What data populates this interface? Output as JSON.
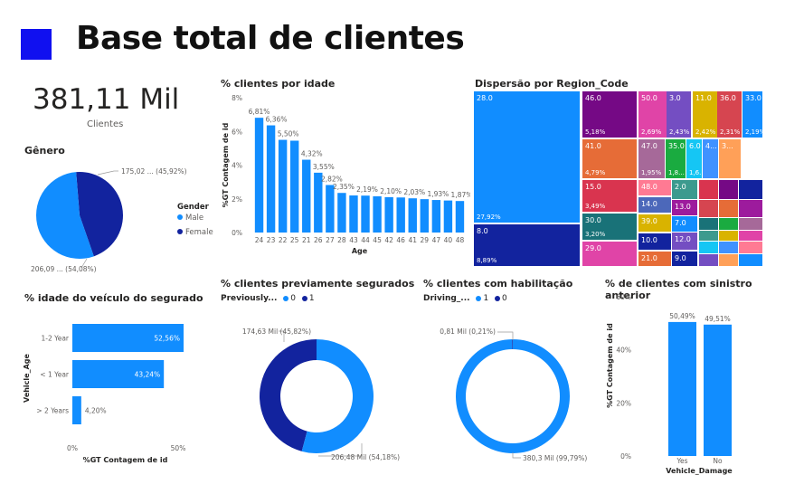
{
  "header": {
    "title": "Base total de clientes",
    "accent": "#1010f0"
  },
  "kpi": {
    "value": "381,11 Mil",
    "label": "Clientes"
  },
  "colors": {
    "primary": "#118dff",
    "dark": "#12239e"
  },
  "chart_data": [
    {
      "id": "genero",
      "type": "pie",
      "title": "Gênero",
      "legend_title": "Gender",
      "categories": [
        "Male",
        "Female"
      ],
      "values": [
        206.09,
        175.02
      ],
      "percents": [
        54.08,
        45.92
      ],
      "colors": [
        "#118dff",
        "#12239e"
      ],
      "labels": [
        "206,09 ... (54,08%)",
        "175,02 ... (45,92%)"
      ]
    },
    {
      "id": "idade",
      "type": "bar",
      "title": "% clientes por idade",
      "xlabel": "Age",
      "ylabel": "%GT Contagem de id",
      "categories": [
        "24",
        "23",
        "22",
        "25",
        "21",
        "26",
        "27",
        "28",
        "43",
        "44",
        "45",
        "42",
        "46",
        "41",
        "29",
        "47",
        "40",
        "48"
      ],
      "values": [
        6.81,
        6.36,
        5.5,
        5.45,
        4.32,
        3.55,
        2.82,
        2.35,
        2.2,
        2.19,
        2.15,
        2.1,
        2.08,
        2.03,
        1.98,
        1.93,
        1.9,
        1.87
      ],
      "data_labels": [
        "6,81%",
        "6,36%",
        "5,50%",
        "",
        "4,32%",
        "3,55%",
        "2,82%",
        "2,35%",
        "",
        "2,19%",
        "",
        "2,10%",
        "",
        "2,03%",
        "",
        "1,93%",
        "",
        "1,87%"
      ],
      "yticks": [
        "0%",
        "2%",
        "4%",
        "6%",
        "8%"
      ],
      "ylim": [
        0,
        8
      ]
    },
    {
      "id": "region",
      "type": "treemap",
      "title": "Dispersão por Region_Code",
      "tiles": [
        {
          "code": "28.0",
          "pct": "27,92%",
          "color": "#118dff"
        },
        {
          "code": "8.0",
          "pct": "8,89%",
          "color": "#12239e"
        },
        {
          "code": "46.0",
          "pct": "5,18%",
          "color": "#750985"
        },
        {
          "code": "41.0",
          "pct": "4,79%",
          "color": "#e66c37"
        },
        {
          "code": "15.0",
          "pct": "3,49%",
          "color": "#d9344f"
        },
        {
          "code": "30.0",
          "pct": "3,20%",
          "color": "#197278"
        },
        {
          "code": "29.0",
          "pct": "",
          "color": "#e044a7"
        },
        {
          "code": "50.0",
          "pct": "2,69%",
          "color": "#e044a7"
        },
        {
          "code": "3.0",
          "pct": "2,43%",
          "color": "#744ec2"
        },
        {
          "code": "11.0",
          "pct": "2,42%",
          "color": "#d9b300"
        },
        {
          "code": "36.0",
          "pct": "2,31%",
          "color": "#d64550"
        },
        {
          "code": "33.0",
          "pct": "2,19%",
          "color": "#118dff"
        },
        {
          "code": "47.0",
          "pct": "1,95%",
          "color": "#a66999"
        },
        {
          "code": "35.0",
          "pct": "1,8...",
          "color": "#1aab40"
        },
        {
          "code": "6.0",
          "pct": "1,6...",
          "color": "#15c6f4"
        },
        {
          "code": "4...",
          "pct": "",
          "color": "#4092ff"
        },
        {
          "code": "3...",
          "pct": "",
          "color": "#ffa058"
        },
        {
          "code": "48.0",
          "pct": "",
          "color": "#ff7a93"
        },
        {
          "code": "2.0",
          "pct": "",
          "color": "#3c9a8e"
        },
        {
          "code": "14.0",
          "pct": "",
          "color": "#4c68ba"
        },
        {
          "code": "13.0",
          "pct": "",
          "color": "#9d1b9d"
        },
        {
          "code": "39.0",
          "pct": "",
          "color": "#d9b300"
        },
        {
          "code": "7.0",
          "pct": "",
          "color": "#118dff"
        },
        {
          "code": "10.0",
          "pct": "",
          "color": "#12239e"
        },
        {
          "code": "12.0",
          "pct": "",
          "color": "#744ec2"
        },
        {
          "code": "21.0",
          "pct": "",
          "color": "#e66c37"
        },
        {
          "code": "9.0",
          "pct": "",
          "color": "#12239e"
        }
      ]
    },
    {
      "id": "veiculo",
      "type": "bar",
      "orientation": "horizontal",
      "title": "% idade do veículo do segurado",
      "ylabel": "Vehicle_Age",
      "xlabel": "%GT Contagem de id",
      "categories": [
        "1-2 Year",
        "< 1 Year",
        "> 2 Years"
      ],
      "values": [
        52.56,
        43.24,
        4.2
      ],
      "data_labels": [
        "52,56%",
        "43,24%",
        "4,20%"
      ],
      "xticks": [
        "0%",
        "50%"
      ],
      "xlim": [
        0,
        50
      ]
    },
    {
      "id": "segurados",
      "type": "pie",
      "variant": "donut",
      "title": "% clientes previamente segurados",
      "legend_title": "Previously...",
      "categories": [
        "0",
        "1"
      ],
      "values": [
        206.48,
        174.63
      ],
      "percents": [
        54.18,
        45.82
      ],
      "colors": [
        "#118dff",
        "#12239e"
      ],
      "labels": [
        "206,48 Mil (54,18%)",
        "174,63 Mil (45,82%)"
      ]
    },
    {
      "id": "habilitacao",
      "type": "pie",
      "variant": "donut",
      "title": "% clientes com habilitação",
      "legend_title": "Driving_...",
      "categories": [
        "1",
        "0"
      ],
      "values": [
        380.3,
        0.81
      ],
      "percents": [
        99.79,
        0.21
      ],
      "colors": [
        "#118dff",
        "#12239e"
      ],
      "labels": [
        "380,3 Mil (99,79%)",
        "0,81 Mil (0,21%)"
      ]
    },
    {
      "id": "sinistro",
      "type": "bar",
      "title": "% de clientes com sinistro anterior",
      "xlabel": "Vehicle_Damage",
      "ylabel": "%GT Contagem de id",
      "categories": [
        "Yes",
        "No"
      ],
      "values": [
        50.49,
        49.51
      ],
      "data_labels": [
        "50,49%",
        "49,51%"
      ],
      "yticks": [
        "0%",
        "20%",
        "40%",
        "60%"
      ],
      "ylim": [
        0,
        60
      ]
    }
  ]
}
